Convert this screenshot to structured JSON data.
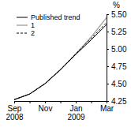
{
  "chart_data": {
    "type": "line",
    "ylabel": "%",
    "categories": [
      "Sep 2008",
      null,
      "Nov",
      null,
      "Jan 2009",
      null,
      "Mar"
    ],
    "series": [
      {
        "name": "Published trend",
        "color": "#000000",
        "line_style": "solid",
        "values": [
          4.27,
          4.35,
          4.5,
          4.7,
          4.92,
          5.13,
          5.35
        ]
      },
      {
        "name": "1",
        "color": "#a8a8a8",
        "line_style": "solid",
        "values": [
          4.27,
          4.35,
          4.5,
          4.7,
          4.93,
          5.17,
          5.45
        ]
      },
      {
        "name": "2",
        "color": "#000000",
        "line_style": "dashed",
        "values": [
          4.27,
          4.35,
          4.5,
          4.7,
          4.93,
          5.15,
          5.38
        ]
      }
    ],
    "ylim": [
      4.25,
      5.5
    ],
    "yticks": [
      4.25,
      {
        "value": 4.5,
        "label": "4.50"
      },
      4.75,
      {
        "value": 5,
        "label": "5.00"
      },
      5.25,
      {
        "value": 5.5,
        "label": "5.50"
      }
    ],
    "legend": "upper left",
    "grid": false
  }
}
